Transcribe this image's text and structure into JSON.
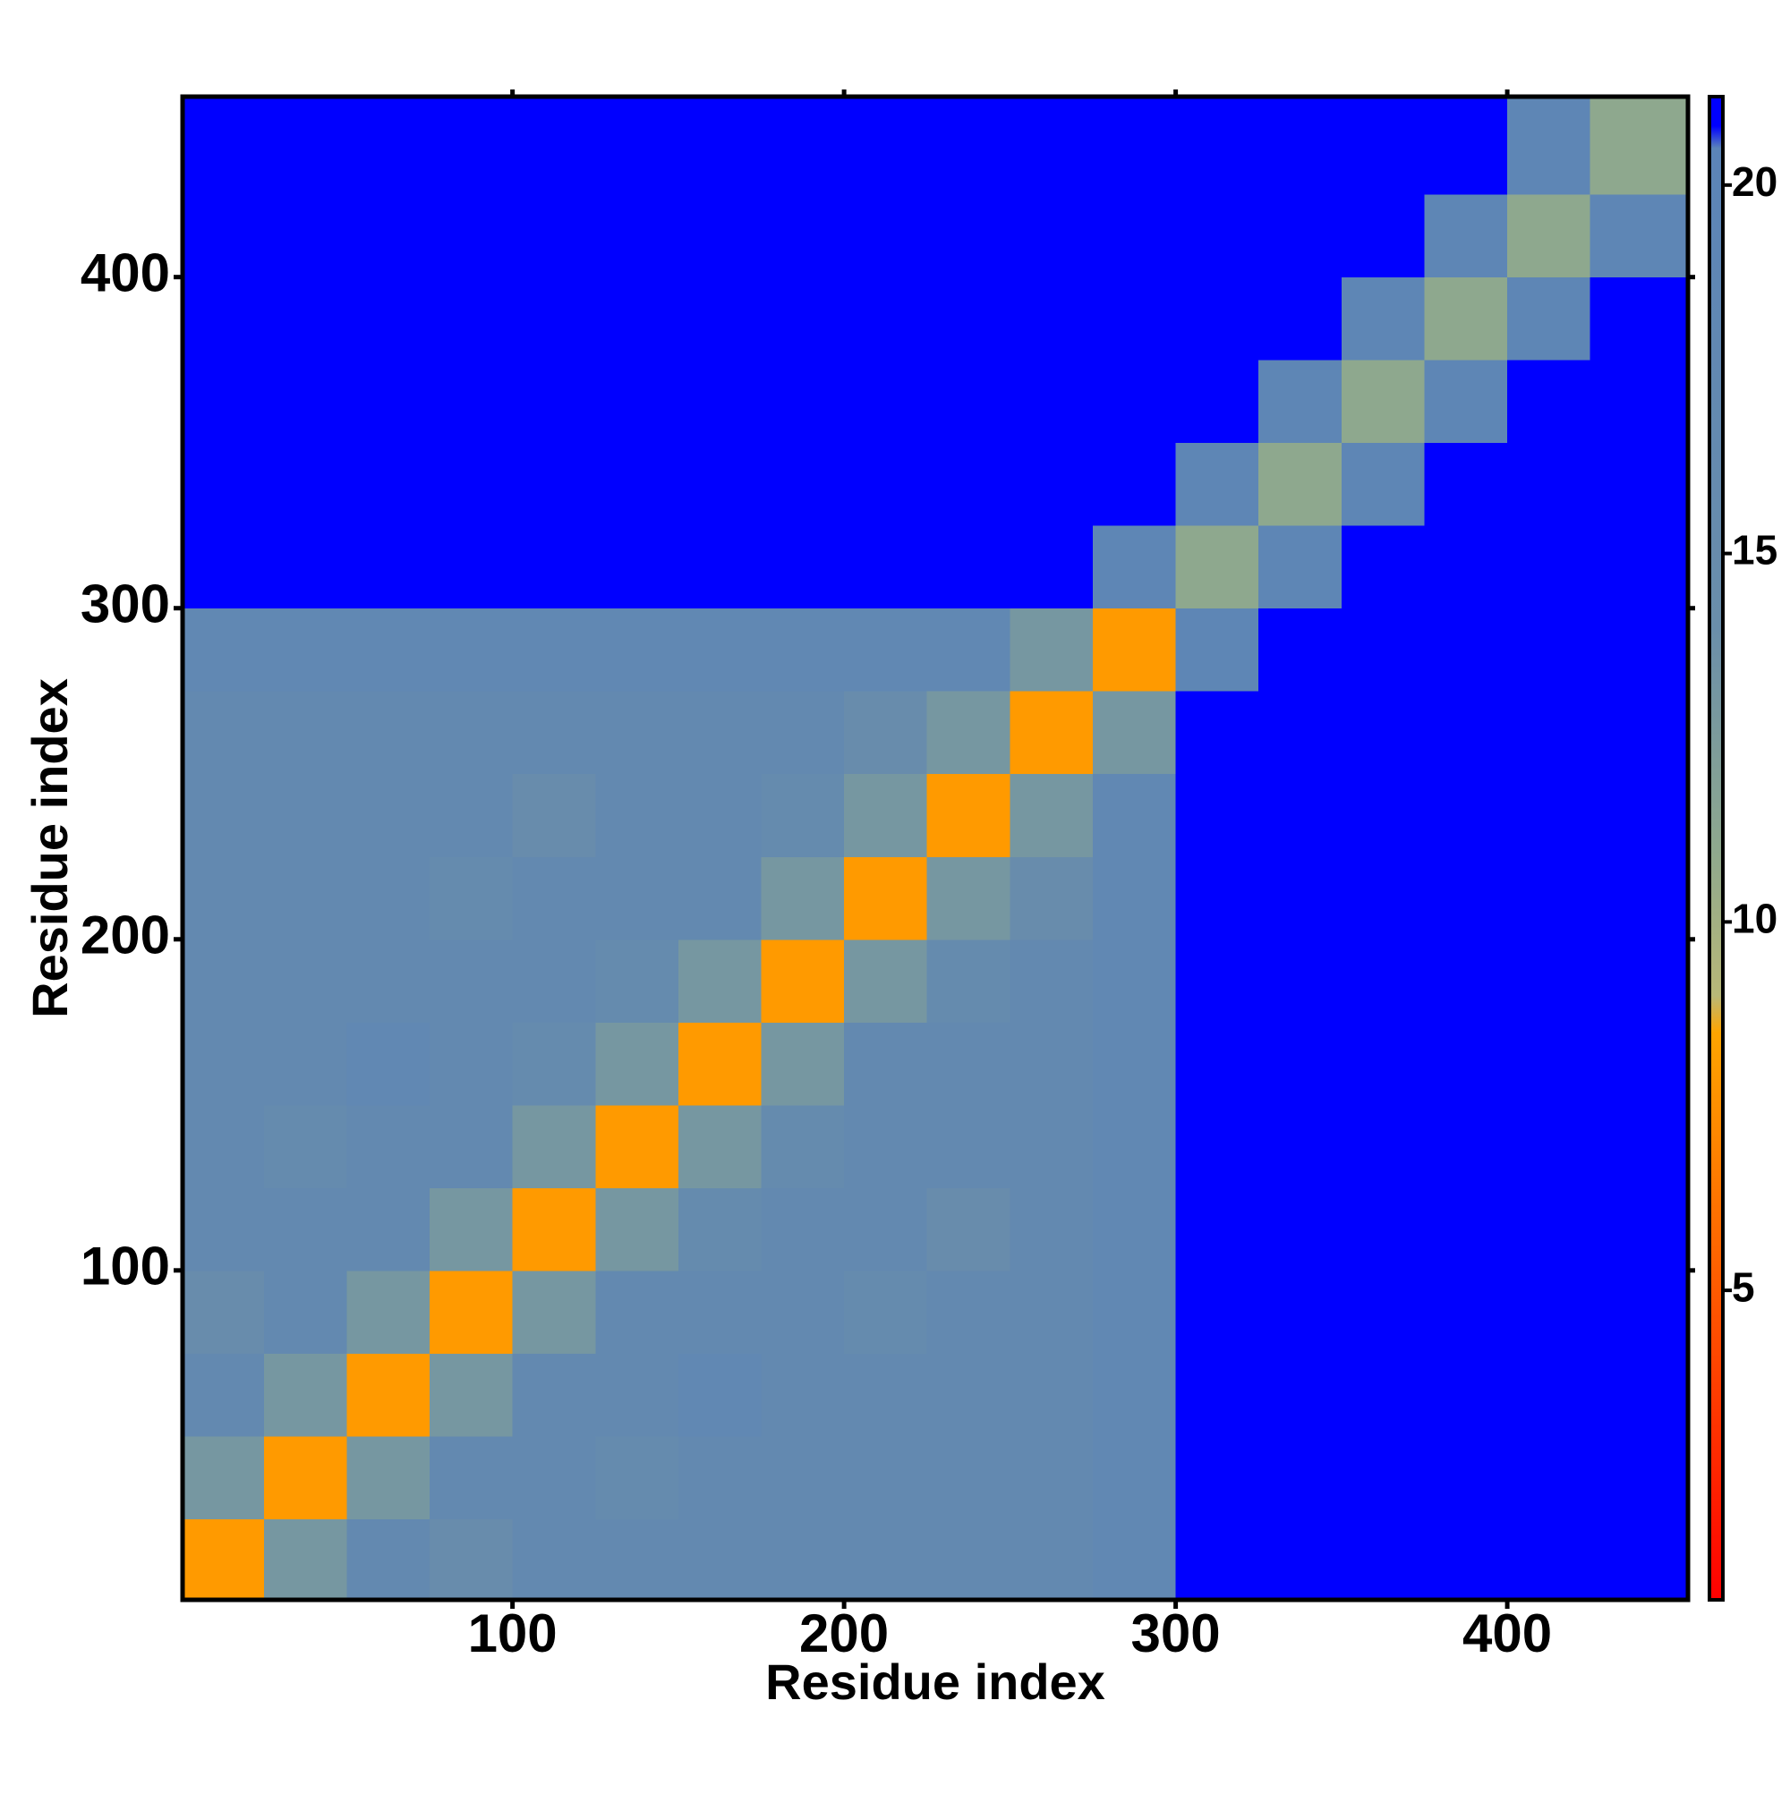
{
  "chart_data": {
    "type": "heatmap",
    "xlabel": "Residue index",
    "ylabel": "Residue index",
    "xlim": [
      0.5,
      454.5
    ],
    "ylim": [
      0.5,
      454.5
    ],
    "xticks": [
      100,
      200,
      300,
      400
    ],
    "yticks": [
      100,
      200,
      300,
      400
    ],
    "xbins": [
      0.5,
      25,
      50,
      75,
      100,
      125,
      150,
      175,
      200,
      225,
      250,
      275,
      300,
      325,
      350,
      375,
      400,
      425,
      454.5
    ],
    "ybins": [
      0.5,
      25,
      50,
      75,
      100,
      125,
      150,
      175,
      200,
      225,
      250,
      275,
      300,
      325,
      350,
      375,
      400,
      425,
      454.5
    ],
    "z": [
      [
        8,
        13,
        17,
        15,
        17,
        17,
        17,
        17,
        17,
        17,
        17,
        18,
        21,
        21,
        21,
        21,
        21,
        21
      ],
      [
        13,
        8,
        13,
        17,
        17,
        16,
        17,
        17,
        17,
        17,
        17,
        18,
        21,
        21,
        21,
        21,
        21,
        21
      ],
      [
        17,
        13,
        8,
        13,
        17,
        17,
        18,
        17,
        17,
        17,
        17,
        18,
        21,
        21,
        21,
        21,
        21,
        21
      ],
      [
        15,
        17,
        13,
        8,
        13,
        17,
        17,
        17,
        16,
        17,
        17,
        18,
        21,
        21,
        21,
        21,
        21,
        21
      ],
      [
        17,
        17,
        17,
        13,
        8,
        13,
        16,
        17,
        17,
        15,
        17,
        18,
        21,
        21,
        21,
        21,
        21,
        21
      ],
      [
        17,
        16,
        17,
        17,
        13,
        8,
        13,
        16,
        17,
        17,
        17,
        18,
        21,
        21,
        21,
        21,
        21,
        21
      ],
      [
        17,
        17,
        18,
        17,
        16,
        13,
        8,
        13,
        17,
        17,
        17,
        18,
        21,
        21,
        21,
        21,
        21,
        21
      ],
      [
        17,
        17,
        17,
        17,
        17,
        16,
        13,
        8,
        13,
        16,
        17,
        18,
        21,
        21,
        21,
        21,
        21,
        21
      ],
      [
        17,
        17,
        17,
        16,
        17,
        17,
        17,
        13,
        8,
        13,
        15,
        18,
        21,
        21,
        21,
        21,
        21,
        21
      ],
      [
        17,
        17,
        17,
        17,
        15,
        17,
        17,
        16,
        13,
        8,
        13,
        18,
        21,
        21,
        21,
        21,
        21,
        21
      ],
      [
        17,
        17,
        17,
        17,
        17,
        17,
        17,
        17,
        15,
        13,
        8,
        13,
        21,
        21,
        21,
        21,
        21,
        21
      ],
      [
        18,
        18,
        18,
        18,
        18,
        18,
        18,
        18,
        18,
        18,
        13,
        8,
        19,
        21,
        21,
        21,
        21,
        21
      ],
      [
        21,
        21,
        21,
        21,
        21,
        21,
        21,
        21,
        21,
        21,
        21,
        19,
        11,
        19,
        21,
        21,
        21,
        21
      ],
      [
        21,
        21,
        21,
        21,
        21,
        21,
        21,
        21,
        21,
        21,
        21,
        21,
        19,
        11,
        19,
        21,
        21,
        21
      ],
      [
        21,
        21,
        21,
        21,
        21,
        21,
        21,
        21,
        21,
        21,
        21,
        21,
        21,
        19,
        11,
        19,
        21,
        21
      ],
      [
        21,
        21,
        21,
        21,
        21,
        21,
        21,
        21,
        21,
        21,
        21,
        21,
        21,
        21,
        19,
        11,
        19,
        21
      ],
      [
        21,
        21,
        21,
        21,
        21,
        21,
        21,
        21,
        21,
        21,
        21,
        21,
        21,
        21,
        21,
        19,
        11,
        19
      ],
      [
        21,
        21,
        21,
        21,
        21,
        21,
        21,
        21,
        21,
        21,
        21,
        21,
        21,
        21,
        21,
        21,
        19,
        11
      ]
    ],
    "colorbar": {
      "lim": [
        0.8,
        21.2
      ],
      "ticks": [
        5,
        10,
        15,
        20
      ],
      "stops": [
        [
          0.8,
          "#ff0000"
        ],
        [
          5,
          "#ff5a00"
        ],
        [
          8.5,
          "#ffa500"
        ],
        [
          9,
          "#b8b878"
        ],
        [
          11,
          "#8ea88e"
        ],
        [
          14,
          "#6a8eaa"
        ],
        [
          20.5,
          "#5b84b8"
        ],
        [
          20.8,
          "#0000ff"
        ],
        [
          21.2,
          "#0000ff"
        ]
      ]
    }
  }
}
